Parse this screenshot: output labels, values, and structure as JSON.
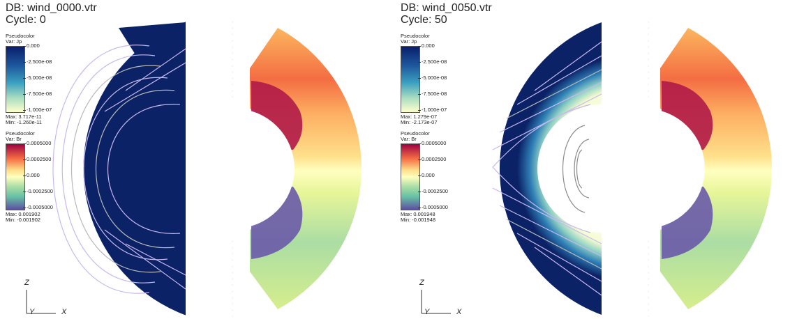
{
  "panels": [
    {
      "db_label": "DB: wind_0000.vtr",
      "cycle_label": "Cycle: 0",
      "legend_jp": {
        "plot_type": "Pseudocolor",
        "var_label": "Var: Jp",
        "ticks": [
          "0.000",
          "-2.500e-08",
          "-5.000e-08",
          "-7.500e-08",
          "-1.000e-07"
        ],
        "max_label": "Max: 3.717e-11",
        "min_label": "Min: -1.260e-11"
      },
      "legend_br": {
        "plot_type": "Pseudocolor",
        "var_label": "Var: Br",
        "ticks": [
          "0.0005000",
          "0.0002500",
          "0.000",
          "-0.0002500",
          "-0.0005000"
        ],
        "max_label": "Max: 0.001902",
        "min_label": "Min: -0.001902"
      }
    },
    {
      "db_label": "DB: wind_0050.vtr",
      "cycle_label": "Cycle: 50",
      "legend_jp": {
        "plot_type": "Pseudocolor",
        "var_label": "Var: Jp",
        "ticks": [
          "0.000",
          "-2.500e-08",
          "-5.000e-08",
          "-7.500e-08",
          "-1.000e-07"
        ],
        "max_label": "Max: 1.279e-07",
        "min_label": "Min: -2.173e-07"
      },
      "legend_br": {
        "plot_type": "Pseudocolor",
        "var_label": "Var: Br",
        "ticks": [
          "0.0005000",
          "0.0002500",
          "0.000",
          "-0.0002500",
          "-0.0005000"
        ],
        "max_label": "Max: 0.001948",
        "min_label": "Min: -0.001948"
      }
    }
  ],
  "axes": {
    "vertical": "Z",
    "depth": "Y",
    "horizontal": "X"
  },
  "colors": {
    "jp_colormap": [
      "#0a1f6b",
      "#1e5a9e",
      "#3aa0c0",
      "#a8dcc0",
      "#ffffcc"
    ],
    "br_colormap": [
      "#9e0142",
      "#f46d43",
      "#fee08b",
      "#ffffbf",
      "#abdda4",
      "#66c2a5",
      "#5e4fa2"
    ],
    "field_line": "#c8b8f0",
    "contour": "#b8b8b8"
  }
}
